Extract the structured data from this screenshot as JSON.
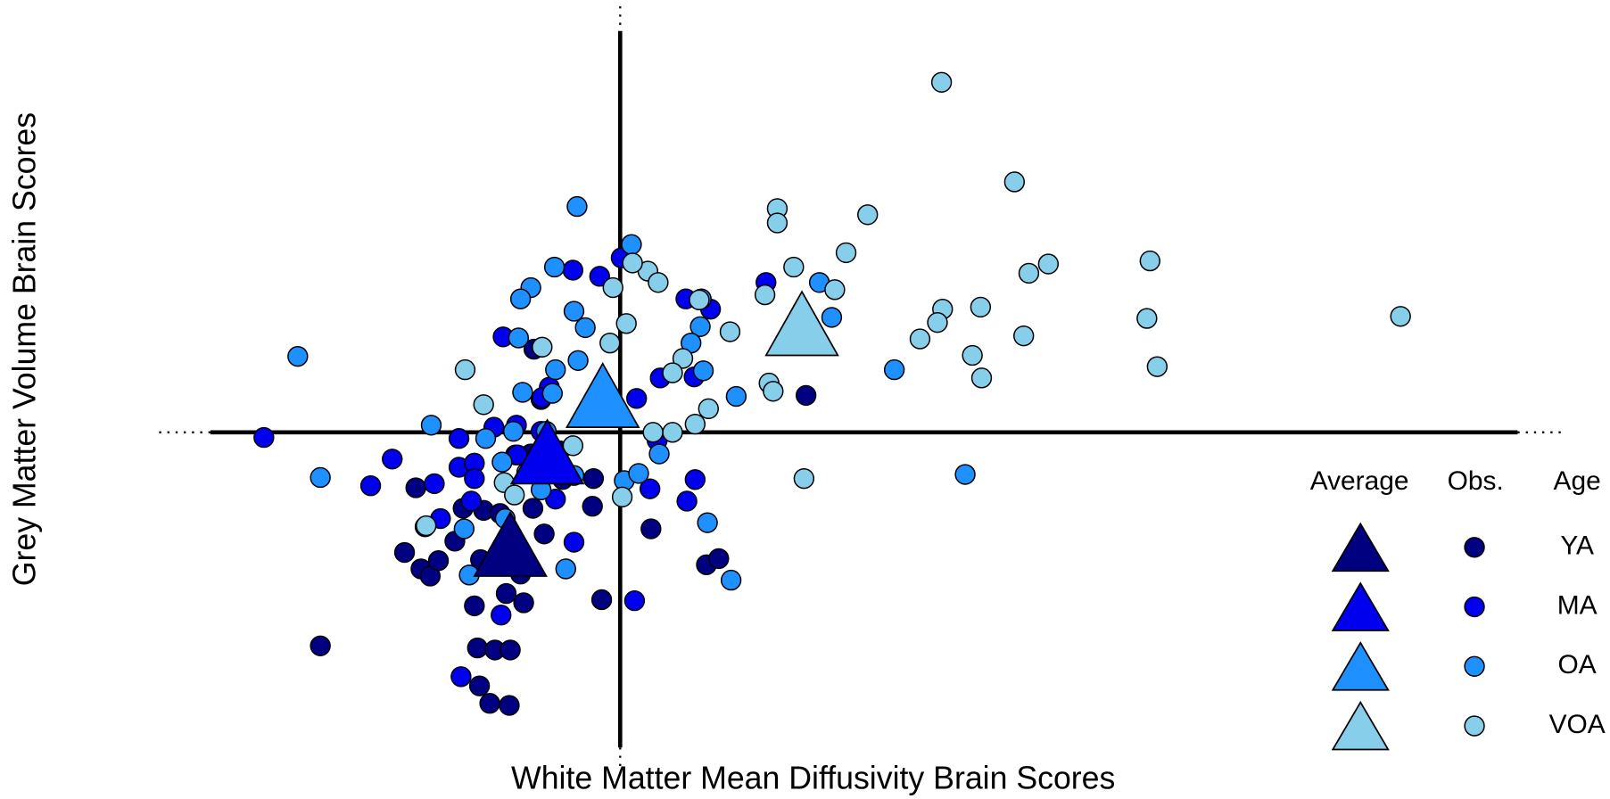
{
  "chart_data": {
    "type": "scatter",
    "x_label": "White Matter Mean Diffusivity Brain Scores",
    "y_label": "Grey Matter Volume Brain Scores",
    "xlim": [
      -6.04,
      9.64
    ],
    "ylim": [
      -3.57,
      4.21
    ],
    "legend_headers": [
      "Average",
      "Obs.",
      "Age"
    ],
    "legend_position": "lower right",
    "series": [
      {
        "name": "YA",
        "color": "#000080",
        "average_x": -1.07,
        "average_y": -1.09,
        "x": [
          -2.92,
          -2.1,
          -1.99,
          -1.94,
          -1.85,
          -1.77,
          -1.9,
          -1.61,
          -1.53,
          -1.33,
          -1.17,
          -0.85,
          -0.74,
          -1.42,
          -1.11,
          -0.94,
          -1.39,
          -1.22,
          -1.07,
          -1.37,
          -1.27,
          -1.08,
          -0.18,
          -0.27,
          -0.26,
          0.3,
          0.84,
          0.96,
          1.81,
          -0.84,
          -0.77,
          -1.02,
          -0.87,
          -0.59,
          -0.56,
          -1.36,
          -0.97
        ],
        "y": [
          -2.08,
          -1.17,
          -0.54,
          -1.33,
          -1.4,
          -1.25,
          -0.92,
          -1.06,
          -0.74,
          -0.76,
          -0.79,
          -0.74,
          -0.99,
          -1.69,
          -1.57,
          -1.66,
          -2.1,
          -2.12,
          -2.12,
          -2.47,
          -2.64,
          -2.66,
          -1.63,
          -0.72,
          -0.45,
          -0.94,
          -1.29,
          -1.23,
          0.36,
          0.81,
          0.32,
          -0.22,
          -0.21,
          -0.18,
          -0.46,
          -1.24,
          -1.38
        ]
      },
      {
        "name": "MA",
        "color": "#0000ee",
        "average_x": -0.71,
        "average_y": -0.19,
        "x": [
          -3.47,
          -2.43,
          -2.22,
          -1.81,
          -1.75,
          -1.57,
          -1.57,
          -1.42,
          -1.42,
          -1.45,
          -1.23,
          -1.01,
          -1.14,
          -0.69,
          -0.76,
          -0.46,
          -0.2,
          0.01,
          0.64,
          0.88,
          0.39,
          0.72,
          0.16,
          0.36,
          0.29,
          0.65,
          0.73,
          1.42,
          0.14,
          -0.45,
          -0.63,
          -1.16,
          -1.55,
          -0.77,
          -1.0
        ],
        "y": [
          -0.05,
          -0.52,
          -0.26,
          -0.5,
          -0.84,
          -0.06,
          -0.34,
          -0.3,
          -0.45,
          -0.67,
          0.05,
          0.07,
          0.93,
          0.44,
          0.34,
          1.58,
          1.52,
          1.7,
          1.3,
          1.2,
          0.53,
          0.54,
          0.33,
          -0.08,
          -0.55,
          -0.67,
          -0.46,
          1.46,
          -1.64,
          -1.07,
          -0.65,
          -1.78,
          -2.38,
          0.01,
          -0.22
        ]
      },
      {
        "name": "OA",
        "color": "#1e90ff",
        "average_x": -0.17,
        "average_y": 0.36,
        "x": [
          -0.42,
          0.11,
          -0.64,
          -0.87,
          -0.97,
          -0.45,
          -0.34,
          -0.99,
          -0.63,
          -0.41,
          -0.95,
          -0.66,
          -1.84,
          -1.31,
          -3.14,
          -2.92,
          -1.15,
          -1.04,
          -0.72,
          -0.18,
          0.78,
          0.69,
          0.81,
          1.13,
          0.79,
          2.06,
          1.94,
          2.67,
          3.36,
          0.85,
          1.08,
          -0.53,
          0.04,
          0.18,
          0.38,
          -1.52,
          -0.77,
          -0.45,
          -1.47,
          -1.12
        ],
        "y": [
          2.2,
          1.83,
          1.61,
          1.41,
          1.3,
          1.18,
          1.02,
          0.92,
          0.61,
          0.7,
          0.39,
          0.38,
          0.07,
          -0.06,
          0.74,
          -0.44,
          -0.29,
          0.01,
          0.01,
          0.16,
          1.03,
          0.87,
          0.6,
          0.35,
          1.3,
          1.12,
          1.46,
          0.61,
          -0.41,
          -0.88,
          -1.44,
          -1.33,
          -0.47,
          -0.4,
          -0.21,
          -0.94,
          -0.56,
          -0.42,
          -1.39,
          -0.84
        ]
      },
      {
        "name": "VOA",
        "color": "#87ceeb",
        "average_x": 1.77,
        "average_y": 1.06,
        "x": [
          3.13,
          3.84,
          1.53,
          1.53,
          2.41,
          2.2,
          1.69,
          3.98,
          4.17,
          5.16,
          2.09,
          1.41,
          0.77,
          3.14,
          3.51,
          3.09,
          5.13,
          7.6,
          3.93,
          2.92,
          3.43,
          5.23,
          3.52,
          1.45,
          1.49,
          1.07,
          0.06,
          -0.1,
          0.27,
          0.37,
          0.12,
          -0.07,
          -0.76,
          -1.51,
          -1.33,
          0.61,
          0.51,
          0.86,
          0.73,
          0.51,
          0.32,
          -0.46,
          -1.13,
          -0.91,
          0.02,
          1.79,
          -1.89,
          -1.03
        ],
        "y": [
          3.41,
          2.44,
          2.18,
          2.04,
          2.12,
          1.75,
          1.61,
          1.55,
          1.64,
          1.67,
          1.39,
          1.34,
          1.29,
          1.2,
          1.22,
          1.07,
          1.11,
          1.13,
          0.94,
          0.91,
          0.75,
          0.64,
          0.53,
          0.48,
          0.4,
          0.98,
          1.06,
          0.87,
          1.57,
          1.46,
          1.65,
          1.41,
          0.83,
          0.61,
          0.27,
          0.72,
          0.58,
          0.23,
          0.08,
          0.0,
          0.0,
          -0.13,
          -0.49,
          -0.39,
          -0.63,
          -0.45,
          -0.91,
          -0.61
        ]
      }
    ]
  }
}
